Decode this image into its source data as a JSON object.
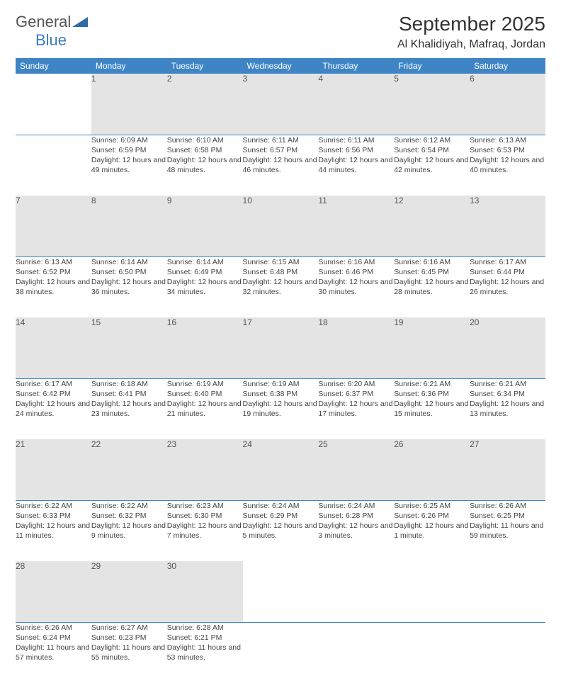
{
  "brand": {
    "part1": "General",
    "part2": "Blue"
  },
  "title": "September 2025",
  "location": "Al Khalidiyah, Mafraq, Jordan",
  "colors": {
    "header_bg": "#3f85c6",
    "header_fg": "#ffffff",
    "daynum_bg": "#e4e4e4",
    "divider": "#3f85c6",
    "text": "#444444",
    "logo_accent": "#3a7ab8"
  },
  "weekdays": [
    "Sunday",
    "Monday",
    "Tuesday",
    "Wednesday",
    "Thursday",
    "Friday",
    "Saturday"
  ],
  "weeks": [
    [
      null,
      {
        "n": "1",
        "sr": "Sunrise: 6:09 AM",
        "ss": "Sunset: 6:59 PM",
        "dl": "Daylight: 12 hours and 49 minutes."
      },
      {
        "n": "2",
        "sr": "Sunrise: 6:10 AM",
        "ss": "Sunset: 6:58 PM",
        "dl": "Daylight: 12 hours and 48 minutes."
      },
      {
        "n": "3",
        "sr": "Sunrise: 6:11 AM",
        "ss": "Sunset: 6:57 PM",
        "dl": "Daylight: 12 hours and 46 minutes."
      },
      {
        "n": "4",
        "sr": "Sunrise: 6:11 AM",
        "ss": "Sunset: 6:56 PM",
        "dl": "Daylight: 12 hours and 44 minutes."
      },
      {
        "n": "5",
        "sr": "Sunrise: 6:12 AM",
        "ss": "Sunset: 6:54 PM",
        "dl": "Daylight: 12 hours and 42 minutes."
      },
      {
        "n": "6",
        "sr": "Sunrise: 6:13 AM",
        "ss": "Sunset: 6:53 PM",
        "dl": "Daylight: 12 hours and 40 minutes."
      }
    ],
    [
      {
        "n": "7",
        "sr": "Sunrise: 6:13 AM",
        "ss": "Sunset: 6:52 PM",
        "dl": "Daylight: 12 hours and 38 minutes."
      },
      {
        "n": "8",
        "sr": "Sunrise: 6:14 AM",
        "ss": "Sunset: 6:50 PM",
        "dl": "Daylight: 12 hours and 36 minutes."
      },
      {
        "n": "9",
        "sr": "Sunrise: 6:14 AM",
        "ss": "Sunset: 6:49 PM",
        "dl": "Daylight: 12 hours and 34 minutes."
      },
      {
        "n": "10",
        "sr": "Sunrise: 6:15 AM",
        "ss": "Sunset: 6:48 PM",
        "dl": "Daylight: 12 hours and 32 minutes."
      },
      {
        "n": "11",
        "sr": "Sunrise: 6:16 AM",
        "ss": "Sunset: 6:46 PM",
        "dl": "Daylight: 12 hours and 30 minutes."
      },
      {
        "n": "12",
        "sr": "Sunrise: 6:16 AM",
        "ss": "Sunset: 6:45 PM",
        "dl": "Daylight: 12 hours and 28 minutes."
      },
      {
        "n": "13",
        "sr": "Sunrise: 6:17 AM",
        "ss": "Sunset: 6:44 PM",
        "dl": "Daylight: 12 hours and 26 minutes."
      }
    ],
    [
      {
        "n": "14",
        "sr": "Sunrise: 6:17 AM",
        "ss": "Sunset: 6:42 PM",
        "dl": "Daylight: 12 hours and 24 minutes."
      },
      {
        "n": "15",
        "sr": "Sunrise: 6:18 AM",
        "ss": "Sunset: 6:41 PM",
        "dl": "Daylight: 12 hours and 23 minutes."
      },
      {
        "n": "16",
        "sr": "Sunrise: 6:19 AM",
        "ss": "Sunset: 6:40 PM",
        "dl": "Daylight: 12 hours and 21 minutes."
      },
      {
        "n": "17",
        "sr": "Sunrise: 6:19 AM",
        "ss": "Sunset: 6:38 PM",
        "dl": "Daylight: 12 hours and 19 minutes."
      },
      {
        "n": "18",
        "sr": "Sunrise: 6:20 AM",
        "ss": "Sunset: 6:37 PM",
        "dl": "Daylight: 12 hours and 17 minutes."
      },
      {
        "n": "19",
        "sr": "Sunrise: 6:21 AM",
        "ss": "Sunset: 6:36 PM",
        "dl": "Daylight: 12 hours and 15 minutes."
      },
      {
        "n": "20",
        "sr": "Sunrise: 6:21 AM",
        "ss": "Sunset: 6:34 PM",
        "dl": "Daylight: 12 hours and 13 minutes."
      }
    ],
    [
      {
        "n": "21",
        "sr": "Sunrise: 6:22 AM",
        "ss": "Sunset: 6:33 PM",
        "dl": "Daylight: 12 hours and 11 minutes."
      },
      {
        "n": "22",
        "sr": "Sunrise: 6:22 AM",
        "ss": "Sunset: 6:32 PM",
        "dl": "Daylight: 12 hours and 9 minutes."
      },
      {
        "n": "23",
        "sr": "Sunrise: 6:23 AM",
        "ss": "Sunset: 6:30 PM",
        "dl": "Daylight: 12 hours and 7 minutes."
      },
      {
        "n": "24",
        "sr": "Sunrise: 6:24 AM",
        "ss": "Sunset: 6:29 PM",
        "dl": "Daylight: 12 hours and 5 minutes."
      },
      {
        "n": "25",
        "sr": "Sunrise: 6:24 AM",
        "ss": "Sunset: 6:28 PM",
        "dl": "Daylight: 12 hours and 3 minutes."
      },
      {
        "n": "26",
        "sr": "Sunrise: 6:25 AM",
        "ss": "Sunset: 6:26 PM",
        "dl": "Daylight: 12 hours and 1 minute."
      },
      {
        "n": "27",
        "sr": "Sunrise: 6:26 AM",
        "ss": "Sunset: 6:25 PM",
        "dl": "Daylight: 11 hours and 59 minutes."
      }
    ],
    [
      {
        "n": "28",
        "sr": "Sunrise: 6:26 AM",
        "ss": "Sunset: 6:24 PM",
        "dl": "Daylight: 11 hours and 57 minutes."
      },
      {
        "n": "29",
        "sr": "Sunrise: 6:27 AM",
        "ss": "Sunset: 6:23 PM",
        "dl": "Daylight: 11 hours and 55 minutes."
      },
      {
        "n": "30",
        "sr": "Sunrise: 6:28 AM",
        "ss": "Sunset: 6:21 PM",
        "dl": "Daylight: 11 hours and 53 minutes."
      },
      null,
      null,
      null,
      null
    ]
  ]
}
